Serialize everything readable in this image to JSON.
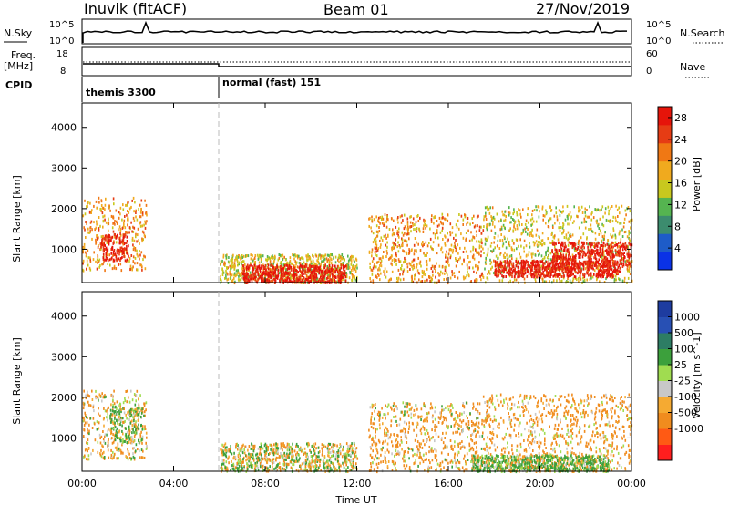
{
  "header": {
    "station": "Inuvik (fitACF)",
    "beam": "Beam 01",
    "date": "27/Nov/2019"
  },
  "side_labels": {
    "nsky": "N.Sky",
    "freq_line1": "Freq.",
    "freq_line2": "[MHz]",
    "cpid": "CPID",
    "nsearch": "N.Search",
    "nave": "Nave"
  },
  "top_axes": {
    "nsky_ticks": [
      "10^5",
      "10^0"
    ],
    "nsearch_ticks": [
      "10^5",
      "10^0"
    ],
    "freq_ticks": [
      "18",
      "8"
    ],
    "nave_ticks": [
      "60",
      "0"
    ]
  },
  "cpid_segments": [
    {
      "label": "themis 3300",
      "start_hour": 0
    },
    {
      "label": "normal (fast) 151",
      "start_hour": 6
    }
  ],
  "colors": {
    "power_scale": [
      "#0a32e6",
      "#1e5cc8",
      "#3c8c6e",
      "#55b450",
      "#c8c81e",
      "#f0aa1e",
      "#f07814",
      "#e63c14",
      "#e6140a"
    ],
    "velocity_scale": [
      "#ff1e1e",
      "#ff5a14",
      "#f08c1e",
      "#f5aa32",
      "#c8c8c8",
      "#a0dc50",
      "#3ca03c",
      "#2d7d64",
      "#2850b4",
      "#1e3ca0"
    ]
  },
  "chart_data": [
    {
      "type": "heatmap",
      "title": "Power",
      "xlabel": "Time UT",
      "ylabel": "Slant Range [km]",
      "x_range_hours": [
        0,
        24
      ],
      "ylim": [
        180,
        4600
      ],
      "x_ticks": [
        "00:00",
        "04:00",
        "08:00",
        "12:00",
        "16:00",
        "20:00",
        "00:00"
      ],
      "y_ticks": [
        1000,
        2000,
        3000,
        4000
      ],
      "colorbar": {
        "label": "Power [dB]",
        "ticks": [
          4,
          8,
          12,
          16,
          20,
          24,
          28
        ],
        "range": [
          0,
          30
        ]
      },
      "scatter_regions": [
        {
          "t_start": 0.0,
          "t_end": 2.8,
          "range_min": 500,
          "range_max": 2300,
          "value": 20
        },
        {
          "t_start": 0.8,
          "t_end": 2.0,
          "range_min": 750,
          "range_max": 1400,
          "value": 28
        },
        {
          "t_start": 6.0,
          "t_end": 12.0,
          "range_min": 200,
          "range_max": 900,
          "value": 16
        },
        {
          "t_start": 7.0,
          "t_end": 11.5,
          "range_min": 200,
          "range_max": 650,
          "value": 28
        },
        {
          "t_start": 12.5,
          "t_end": 17.5,
          "range_min": 200,
          "range_max": 1900,
          "value": 20
        },
        {
          "t_start": 17.5,
          "t_end": 24.0,
          "range_min": 200,
          "range_max": 2100,
          "value": 16
        },
        {
          "t_start": 18.0,
          "t_end": 23.5,
          "range_min": 350,
          "range_max": 750,
          "value": 28
        },
        {
          "t_start": 20.5,
          "t_end": 24.0,
          "range_min": 600,
          "range_max": 1200,
          "value": 28
        }
      ]
    },
    {
      "type": "heatmap",
      "title": "Velocity",
      "xlabel": "Time UT",
      "ylabel": "Slant Range [km]",
      "x_range_hours": [
        0,
        24
      ],
      "ylim": [
        180,
        4600
      ],
      "x_ticks": [
        "00:00",
        "04:00",
        "08:00",
        "12:00",
        "16:00",
        "20:00",
        "00:00"
      ],
      "y_ticks": [
        1000,
        2000,
        3000,
        4000
      ],
      "colorbar": {
        "label": "Velocity [m s^-1]",
        "ticks": [
          "1000",
          "500",
          "100",
          "25",
          "-25",
          "-100",
          "-500",
          "-1000"
        ]
      },
      "scatter_regions": [
        {
          "t_start": 0.0,
          "t_end": 2.8,
          "range_min": 500,
          "range_max": 2200,
          "value": -150
        },
        {
          "t_start": 1.2,
          "t_end": 2.6,
          "range_min": 900,
          "range_max": 1800,
          "value": 150
        },
        {
          "t_start": 6.0,
          "t_end": 12.0,
          "range_min": 200,
          "range_max": 900,
          "value": 0
        },
        {
          "t_start": 12.5,
          "t_end": 17.5,
          "range_min": 200,
          "range_max": 1900,
          "value": -150
        },
        {
          "t_start": 17.5,
          "t_end": 24.0,
          "range_min": 200,
          "range_max": 2100,
          "value": -200
        },
        {
          "t_start": 17.0,
          "t_end": 23.0,
          "range_min": 200,
          "range_max": 600,
          "value": 150
        }
      ]
    }
  ]
}
